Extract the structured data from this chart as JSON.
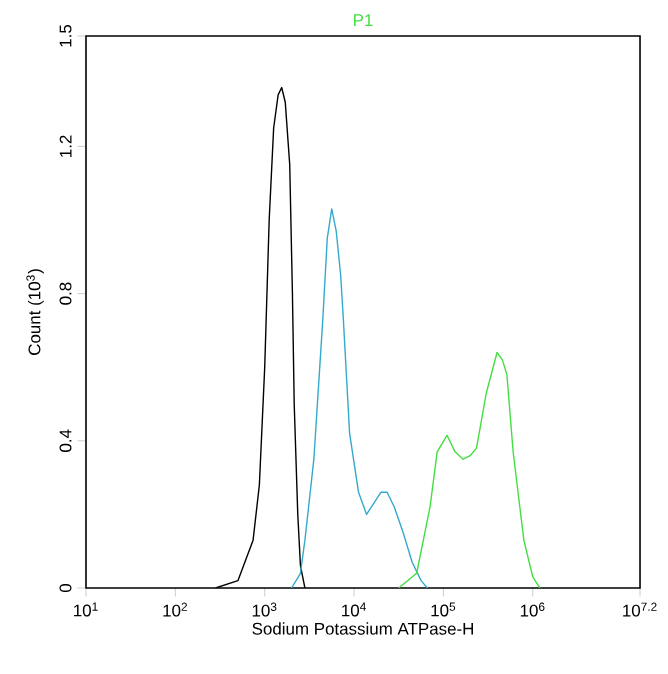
{
  "chart_data": {
    "type": "line",
    "title": "P1",
    "xlabel": "Sodium Potassium ATPase-H",
    "ylabel": "Count (10$^{3}$)",
    "log": "x",
    "xlim": [
      10,
      15848932
    ],
    "ylim": [
      0,
      1.5
    ],
    "xticks": [
      {
        "value": 10,
        "label": "10$^{1}$"
      },
      {
        "value": 100,
        "label": "10$^{2}$"
      },
      {
        "value": 1000,
        "label": "10$^{3}$"
      },
      {
        "value": 10000,
        "label": "10$^{4}$"
      },
      {
        "value": 100000,
        "label": "10$^{5}$"
      },
      {
        "value": 1000000,
        "label": "10$^{6}$"
      },
      {
        "value": 15848932,
        "label": "10$^{7.2}$"
      }
    ],
    "yticks": [
      0,
      0.4,
      0.8,
      1.2,
      1.5
    ],
    "series": [
      {
        "color": "#000000",
        "x": [
          282,
          501,
          741,
          871,
          1000,
          1122,
          1259,
          1413,
          1549,
          1698,
          1905,
          2042,
          2138,
          2344,
          2512,
          2818
        ],
        "values": [
          0,
          0.02,
          0.13,
          0.28,
          0.6,
          1.0,
          1.25,
          1.34,
          1.36,
          1.32,
          1.15,
          0.8,
          0.5,
          0.2,
          0.06,
          0
        ]
      },
      {
        "color": "#33aacc",
        "x": [
          1995,
          2512,
          2818,
          3548,
          4467,
          5012,
          5623,
          6310,
          7079,
          7586,
          8913,
          11220,
          13800,
          16600,
          19950,
          23440,
          28180,
          35480,
          44670,
          56230,
          66070
        ],
        "values": [
          0,
          0.04,
          0.13,
          0.35,
          0.73,
          0.95,
          1.03,
          0.97,
          0.85,
          0.73,
          0.42,
          0.26,
          0.2,
          0.23,
          0.26,
          0.26,
          0.22,
          0.15,
          0.07,
          0.02,
          0
        ]
      },
      {
        "color": "#44dd44",
        "x": [
          31620,
          50120,
          70790,
          85110,
          109600,
          134900,
          166000,
          199500,
          234400,
          302000,
          398100,
          457100,
          512900,
          602600,
          794300,
          1000000,
          1202000
        ],
        "values": [
          0,
          0.04,
          0.22,
          0.37,
          0.415,
          0.37,
          0.35,
          0.36,
          0.38,
          0.53,
          0.64,
          0.62,
          0.58,
          0.37,
          0.13,
          0.03,
          0
        ]
      }
    ]
  }
}
